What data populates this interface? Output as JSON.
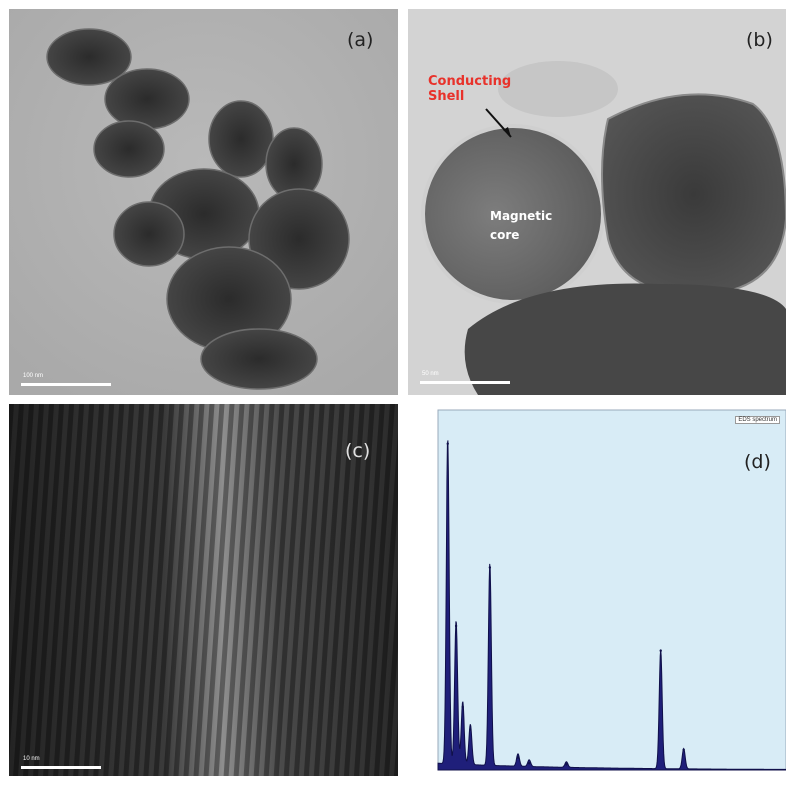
{
  "panels": {
    "a": {
      "label": "(a)",
      "scale_label": "100 nm"
    },
    "b": {
      "label": "(b)",
      "scale_label": "50 nm",
      "shell_label": "Conducting\nShell",
      "core_label": "Magnetic\ncore"
    },
    "c": {
      "label": "(c)",
      "scale_label": "10 nm"
    },
    "d": {
      "label": "(d)",
      "legend": "EDS spectrum"
    }
  },
  "colors": {
    "shell_label": "#e8322b",
    "spectrum_fill": "#1f1f7a",
    "spectrum_bg": "#d8ecf6"
  },
  "chart_data": {
    "type": "area",
    "x": [
      0.28,
      0.52,
      0.71,
      0.93,
      1.49,
      2.3,
      2.62,
      3.69,
      6.4,
      7.06
    ],
    "values": [
      1450,
      640,
      280,
      180,
      900,
      55,
      30,
      25,
      530,
      90
    ],
    "xlim": [
      0,
      10
    ],
    "ylim": [
      0,
      1600
    ],
    "grid": false,
    "legend": "top-right"
  }
}
